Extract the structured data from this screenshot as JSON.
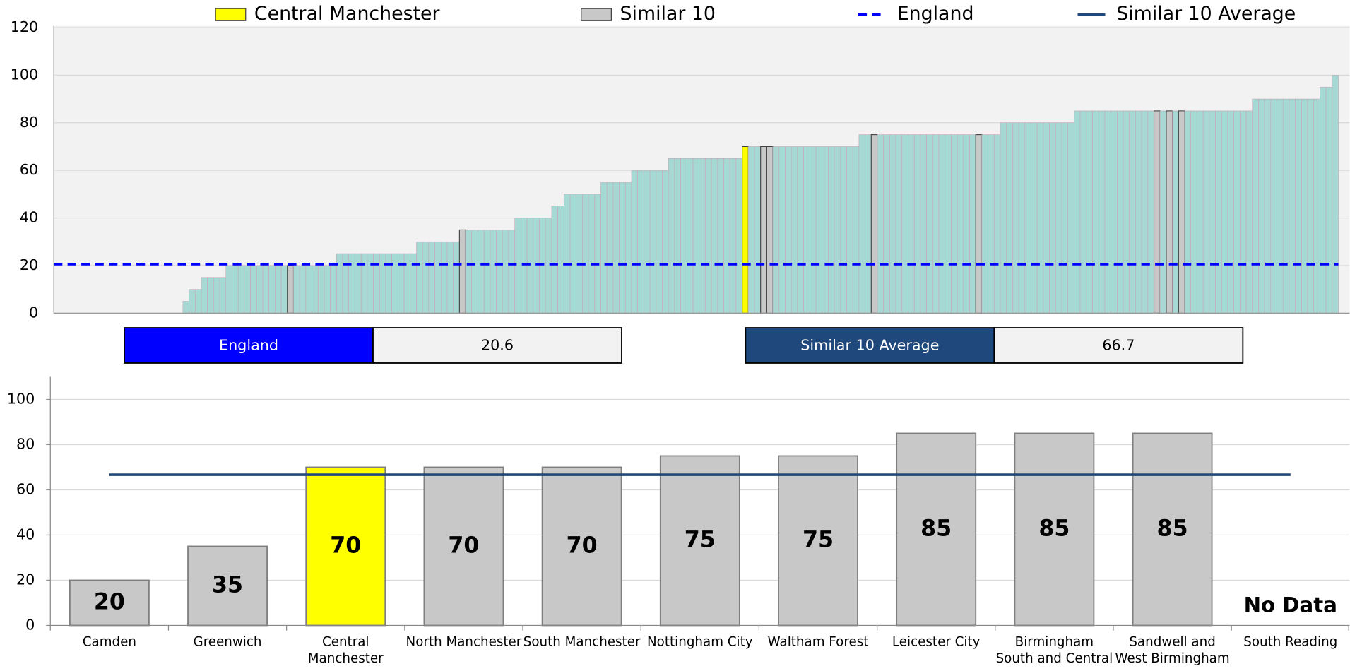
{
  "chart_data": [
    {
      "type": "bar",
      "values": [
        0,
        0,
        0,
        0,
        0,
        0,
        0,
        0,
        0,
        0,
        0,
        0,
        0,
        0,
        0,
        0,
        0,
        0,
        0,
        0,
        0,
        5,
        10,
        10,
        15,
        15,
        15,
        15,
        20,
        20,
        20,
        20,
        20,
        20,
        20,
        20,
        20,
        20,
        20,
        20,
        20,
        20,
        20,
        20,
        20,
        20,
        25,
        25,
        25,
        25,
        25,
        25,
        25,
        25,
        25,
        25,
        25,
        25,
        25,
        30,
        30,
        30,
        30,
        30,
        30,
        30,
        35,
        35,
        35,
        35,
        35,
        35,
        35,
        35,
        35,
        40,
        40,
        40,
        40,
        40,
        40,
        45,
        45,
        50,
        50,
        50,
        50,
        50,
        50,
        55,
        55,
        55,
        55,
        55,
        60,
        60,
        60,
        60,
        60,
        60,
        65,
        65,
        65,
        65,
        65,
        65,
        65,
        65,
        65,
        65,
        65,
        65,
        70,
        70,
        70,
        70,
        70,
        70,
        70,
        70,
        70,
        70,
        70,
        70,
        70,
        70,
        70,
        70,
        70,
        70,
        70,
        75,
        75,
        75,
        75,
        75,
        75,
        75,
        75,
        75,
        75,
        75,
        75,
        75,
        75,
        75,
        75,
        75,
        75,
        75,
        75,
        75,
        75,
        75,
        80,
        80,
        80,
        80,
        80,
        80,
        80,
        80,
        80,
        80,
        80,
        80,
        85,
        85,
        85,
        85,
        85,
        85,
        85,
        85,
        85,
        85,
        85,
        85,
        85,
        85,
        85,
        85,
        85,
        85,
        85,
        85,
        85,
        85,
        85,
        85,
        85,
        85,
        85,
        85,
        85,
        90,
        90,
        90,
        90,
        90,
        90,
        90,
        90,
        90,
        90,
        90,
        95,
        95,
        100
      ],
      "color": "#a6d9d3",
      "highlights": [
        {
          "name": "Central Manchester",
          "color": "#ffff00",
          "bars": [
            112
          ]
        },
        {
          "name": "Similar 10",
          "color": "#c8c8c8",
          "bars": [
            38,
            66,
            115,
            116,
            133,
            150,
            179,
            181,
            183
          ]
        }
      ],
      "reference_lines": [
        {
          "name": "England",
          "value": 20.6,
          "color": "#0000ff",
          "style": "dashed"
        }
      ],
      "ylim": [
        0,
        120
      ],
      "yticks": [
        0,
        20,
        40,
        60,
        80,
        100,
        120
      ],
      "grid": true
    },
    {
      "type": "bar",
      "categories": [
        "Camden",
        "Greenwich",
        "Central Manchester",
        "North Manchester",
        "South Manchester",
        "Nottingham City",
        "Waltham Forest",
        "Leicester City",
        "Birmingham South and Central",
        "Sandwell and West Birmingham",
        "South Reading"
      ],
      "values": [
        20,
        35,
        70,
        70,
        70,
        75,
        75,
        85,
        85,
        85,
        null
      ],
      "value_labels": [
        "20",
        "35",
        "70",
        "70",
        "70",
        "75",
        "75",
        "85",
        "85",
        "85",
        "No Data"
      ],
      "colors": [
        "#c8c8c8",
        "#c8c8c8",
        "#ffff00",
        "#c8c8c8",
        "#c8c8c8",
        "#c8c8c8",
        "#c8c8c8",
        "#c8c8c8",
        "#c8c8c8",
        "#c8c8c8",
        null
      ],
      "reference_lines": [
        {
          "name": "Similar 10 Average",
          "value": 66.7,
          "color": "#1f497d",
          "style": "solid"
        }
      ],
      "ylim": [
        0,
        110
      ],
      "yticks": [
        0,
        20,
        40,
        60,
        80,
        100
      ],
      "grid": true
    }
  ]
}
